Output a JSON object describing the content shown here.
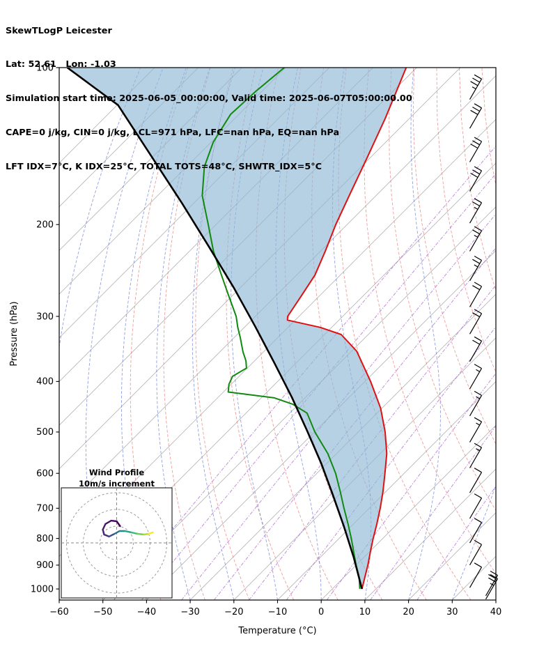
{
  "header": {
    "title": "SkewTLogP Leicester",
    "lat_lon": "Lat: 52.61   Lon: -1.03",
    "sim_time": "Simulation start time: 2025-06-05_00:00:00, Valid time: 2025-06-07T05:00:00.00",
    "indices1": "CAPE=0 j/kg, CIN=0 j/kg, LCL=971 hPa, LFC=nan hPa, EQ=nan hPa",
    "indices2": "LFT IDX=7°C, K IDX=25°C, TOTAL TOTS=48°C, SHWTR_IDX=5°C"
  },
  "chart_data": {
    "type": "skewt-logp",
    "pressure_axis": {
      "label": "Pressure (hPa)",
      "ticks": [
        100,
        200,
        300,
        400,
        500,
        600,
        700,
        800,
        900,
        1000
      ],
      "range": [
        100,
        1050
      ],
      "scale": "log"
    },
    "temperature_axis": {
      "label": "Temperature (°C)",
      "ticks": [
        -60,
        -50,
        -40,
        -30,
        -20,
        -10,
        0,
        10,
        20,
        30,
        40
      ],
      "range": [
        -60,
        40
      ],
      "skew_deg": 45
    },
    "temperature_profile": {
      "name": "Temperature",
      "color": "#e01010",
      "points": [
        [
          1000,
          6.8
        ],
        [
          950,
          4.8
        ],
        [
          900,
          2.7
        ],
        [
          850,
          0.3
        ],
        [
          800,
          -2.2
        ],
        [
          750,
          -4.7
        ],
        [
          700,
          -7.5
        ],
        [
          650,
          -10.7
        ],
        [
          600,
          -14.4
        ],
        [
          550,
          -18.5
        ],
        [
          500,
          -23.8
        ],
        [
          450,
          -30.3
        ],
        [
          400,
          -38.7
        ],
        [
          350,
          -48.8
        ],
        [
          325,
          -56.2
        ],
        [
          315,
          -62.6
        ],
        [
          305,
          -71.8
        ],
        [
          300,
          -72.6
        ],
        [
          275,
          -74.1
        ],
        [
          250,
          -75.8
        ],
        [
          225,
          -78.9
        ],
        [
          200,
          -82.6
        ],
        [
          175,
          -86.3
        ],
        [
          150,
          -90.5
        ],
        [
          125,
          -95.6
        ],
        [
          100,
          -102.4
        ]
      ]
    },
    "dewpoint_profile": {
      "name": "Dewpoint",
      "color": "#0f8a0f",
      "points": [
        [
          1000,
          6.3
        ],
        [
          950,
          3.5
        ],
        [
          900,
          0.0
        ],
        [
          850,
          -3.5
        ],
        [
          800,
          -7.2
        ],
        [
          750,
          -11.3
        ],
        [
          700,
          -15.8
        ],
        [
          650,
          -20.5
        ],
        [
          600,
          -25.7
        ],
        [
          550,
          -32.0
        ],
        [
          500,
          -39.9
        ],
        [
          460,
          -46.0
        ],
        [
          442,
          -51.4
        ],
        [
          430,
          -57.0
        ],
        [
          419,
          -68.9
        ],
        [
          405,
          -70.5
        ],
        [
          391,
          -71.5
        ],
        [
          377,
          -70.2
        ],
        [
          365,
          -72.0
        ],
        [
          351,
          -74.7
        ],
        [
          330,
          -78.5
        ],
        [
          315,
          -81.5
        ],
        [
          300,
          -84.4
        ],
        [
          274,
          -90.8
        ],
        [
          249,
          -97.5
        ],
        [
          225,
          -104.5
        ],
        [
          200,
          -111.8
        ],
        [
          176,
          -119.8
        ],
        [
          155,
          -125.9
        ],
        [
          139,
          -129.5
        ],
        [
          123,
          -131.9
        ],
        [
          111,
          -131.4
        ],
        [
          100,
          -130.3
        ]
      ]
    },
    "parcel_profile": {
      "name": "Parcel trace",
      "color": "#000000",
      "points": [
        [
          1000,
          6.8
        ],
        [
          870,
          -2.3
        ],
        [
          758,
          -11.7
        ],
        [
          660,
          -21.4
        ],
        [
          574,
          -31.3
        ],
        [
          497,
          -42.0
        ],
        [
          429,
          -53.1
        ],
        [
          368,
          -65.1
        ],
        [
          313,
          -77.9
        ],
        [
          264,
          -91.6
        ],
        [
          221,
          -106.4
        ],
        [
          182,
          -122.7
        ],
        [
          148,
          -140.4
        ],
        [
          118,
          -159.8
        ],
        [
          100,
          -180.0
        ]
      ]
    },
    "shaded_region": {
      "between": [
        "parcel_profile",
        "temperature_profile"
      ],
      "color": "#8fb9d6",
      "opacity": 0.65
    },
    "background": {
      "isotherms": {
        "start": -160,
        "end": 40,
        "step": 10,
        "color": "#b8b8b8"
      },
      "dry_adiabats": {
        "start": -40,
        "end": 140,
        "step": 10,
        "color": "#e57f7f"
      },
      "moist_adiabats": {
        "start": -60,
        "end": 60,
        "step": 10,
        "color": "#4a5fd0"
      },
      "mixing_ratio": {
        "values": [
          0.05,
          0.1,
          0.25,
          0.5,
          1,
          2,
          4,
          8,
          16
        ],
        "color": "#a661c9"
      }
    },
    "wind_barbs": {
      "units": "m/s",
      "levels": [
        [
          110,
          33
        ],
        [
          125,
          32
        ],
        [
          145,
          30
        ],
        [
          165,
          28
        ],
        [
          190,
          27
        ],
        [
          215,
          25
        ],
        [
          245,
          23
        ],
        [
          275,
          22
        ],
        [
          310,
          20
        ],
        [
          350,
          18
        ],
        [
          395,
          17
        ],
        [
          445,
          15
        ],
        [
          500,
          15
        ],
        [
          560,
          13
        ],
        [
          625,
          12
        ],
        [
          700,
          10
        ],
        [
          780,
          8
        ],
        [
          860,
          8
        ],
        [
          950,
          12
        ],
        [
          985,
          20
        ],
        [
          1000,
          25
        ]
      ]
    },
    "hodograph": {
      "title_line1": "Wind Profile",
      "title_line2": "10m/s increment",
      "ring_interval_ms": 10,
      "rings": [
        10,
        20,
        30
      ],
      "points": [
        [
          2.1,
          10
        ],
        [
          0,
          12.9
        ],
        [
          -3.3,
          13.3
        ],
        [
          -6.7,
          11.3
        ],
        [
          -8.3,
          7.9
        ],
        [
          -7.5,
          5
        ],
        [
          -4.6,
          3.8
        ],
        [
          -1.3,
          5.4
        ],
        [
          1.7,
          7.1
        ],
        [
          5,
          7.1
        ],
        [
          8.8,
          6.3
        ],
        [
          12.5,
          5.4
        ],
        [
          16.3,
          5
        ],
        [
          19.2,
          5.4
        ],
        [
          21.7,
          6.3
        ]
      ],
      "segment_colors": [
        "#440154",
        "#46085c",
        "#471063",
        "#481a6c",
        "#482475",
        "#472e7c",
        "#3d4e8a",
        "#2e6d8e",
        "#24878e",
        "#21a585",
        "#3dbc74",
        "#74d055",
        "#b5de2b",
        "#fde725"
      ]
    }
  }
}
